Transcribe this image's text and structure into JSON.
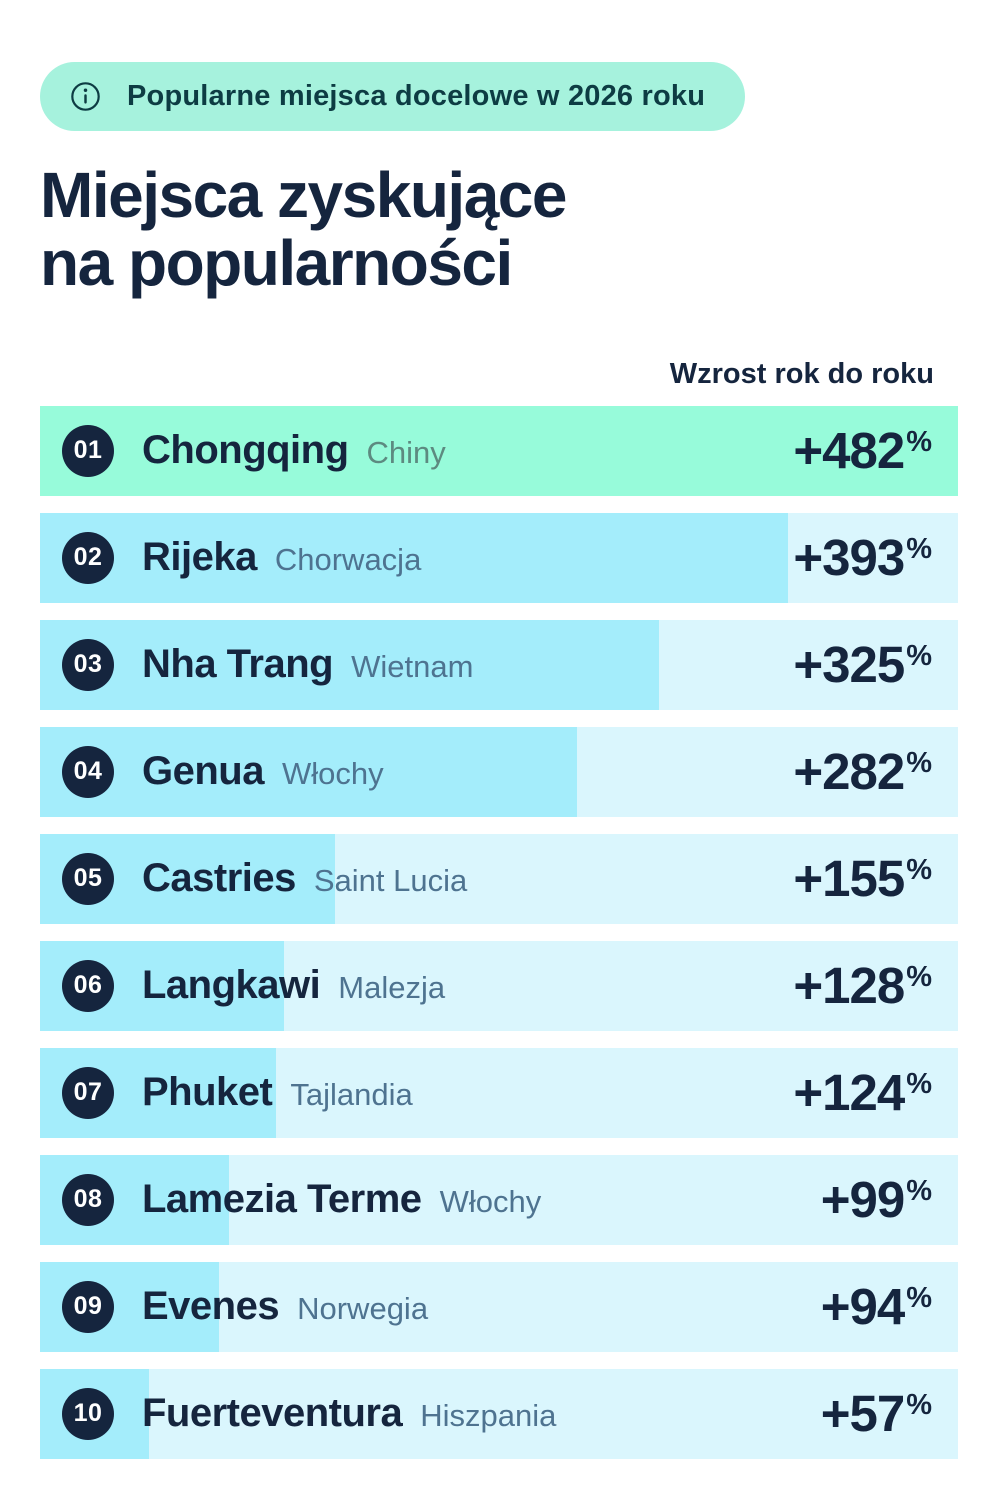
{
  "header": {
    "badge": {
      "label": "Popularne miejsca docelowe w 2026 roku"
    },
    "title_line1": "Miejsca zyskujące",
    "title_line2": "na popularności",
    "column_label": "Wzrost rok do roku"
  },
  "chart_data": {
    "type": "bar",
    "orientation": "horizontal",
    "title": "Miejsca zyskujące na popularności",
    "subtitle": "Popularne miejsca docelowe w 2026 roku",
    "value_label": "Wzrost rok do roku",
    "value_suffix": "%",
    "max_value": 482,
    "bar_scale": "proportional to value, max value fills full row width",
    "rows": [
      {
        "rank": "01",
        "city": "Chongqing",
        "country": "Chiny",
        "value": 482,
        "display": "+482",
        "theme": "green"
      },
      {
        "rank": "02",
        "city": "Rijeka",
        "country": "Chorwacja",
        "value": 393,
        "display": "+393",
        "theme": "blue"
      },
      {
        "rank": "03",
        "city": "Nha Trang",
        "country": "Wietnam",
        "value": 325,
        "display": "+325",
        "theme": "blue"
      },
      {
        "rank": "04",
        "city": "Genua",
        "country": "Włochy",
        "value": 282,
        "display": "+282",
        "theme": "blue"
      },
      {
        "rank": "05",
        "city": "Castries",
        "country": "Saint Lucia",
        "value": 155,
        "display": "+155",
        "theme": "blue"
      },
      {
        "rank": "06",
        "city": "Langkawi",
        "country": "Malezja",
        "value": 128,
        "display": "+128",
        "theme": "blue"
      },
      {
        "rank": "07",
        "city": "Phuket",
        "country": "Tajlandia",
        "value": 124,
        "display": "+124",
        "theme": "blue"
      },
      {
        "rank": "08",
        "city": "Lamezia Terme",
        "country": "Włochy",
        "value": 99,
        "display": "+99",
        "theme": "blue"
      },
      {
        "rank": "09",
        "city": "Evenes",
        "country": "Norwegia",
        "value": 94,
        "display": "+94",
        "theme": "blue"
      },
      {
        "rank": "10",
        "city": "Fuerteventura",
        "country": "Hiszpania",
        "value": 57,
        "display": "+57",
        "theme": "blue"
      }
    ],
    "colors": {
      "accent_green": "#97fbda",
      "bar_blue": "#a4edfb",
      "track_blue": "#daf6fd",
      "navy": "#15253e",
      "pill_bg": "#a6f2dd",
      "pill_text": "#0d3c43",
      "badge_bg": "#15253e",
      "badge_text": "#ffffff",
      "country_green_row": "#5d8a80",
      "country_blue_row": "#4e7390"
    }
  }
}
